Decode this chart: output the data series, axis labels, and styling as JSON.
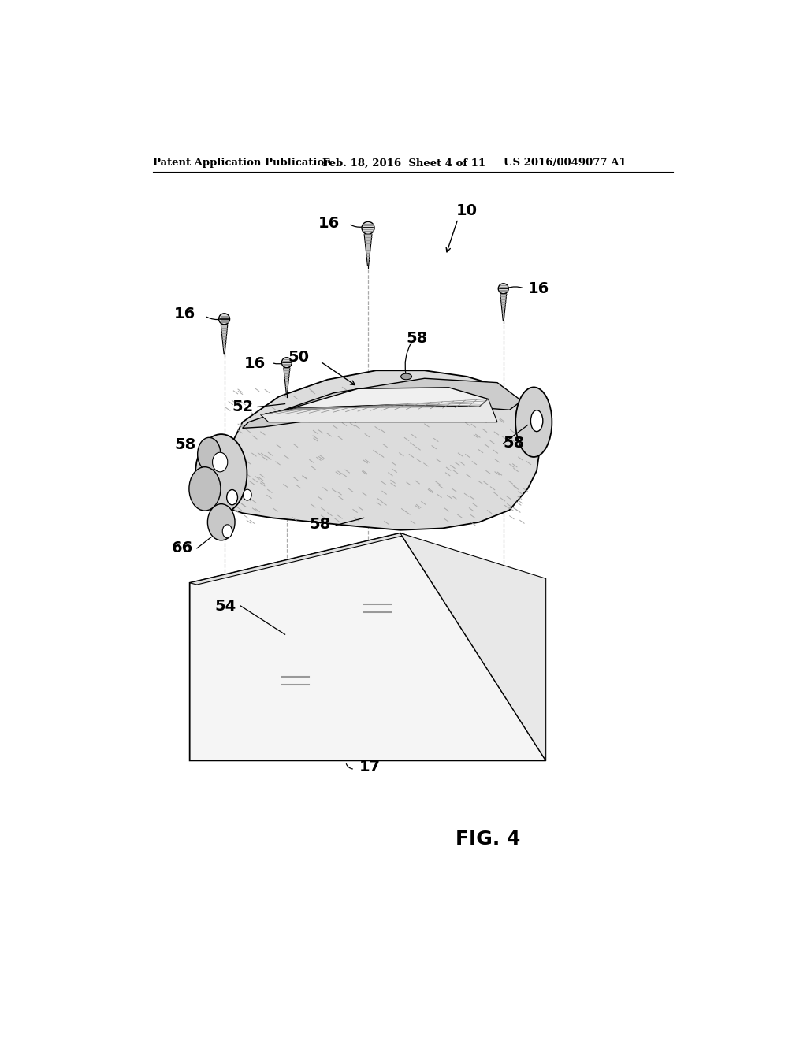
{
  "title_left": "Patent Application Publication",
  "title_mid": "Feb. 18, 2016  Sheet 4 of 11",
  "title_right": "US 2016/0049077 A1",
  "fig_label": "FIG. 4",
  "bg_color": "#ffffff",
  "line_color": "#000000",
  "gray_light": "#e0e0e0",
  "gray_mid": "#c8c8c8",
  "gray_dark": "#a0a0a0",
  "header_fontsize": 9.5,
  "label_fontsize": 14
}
